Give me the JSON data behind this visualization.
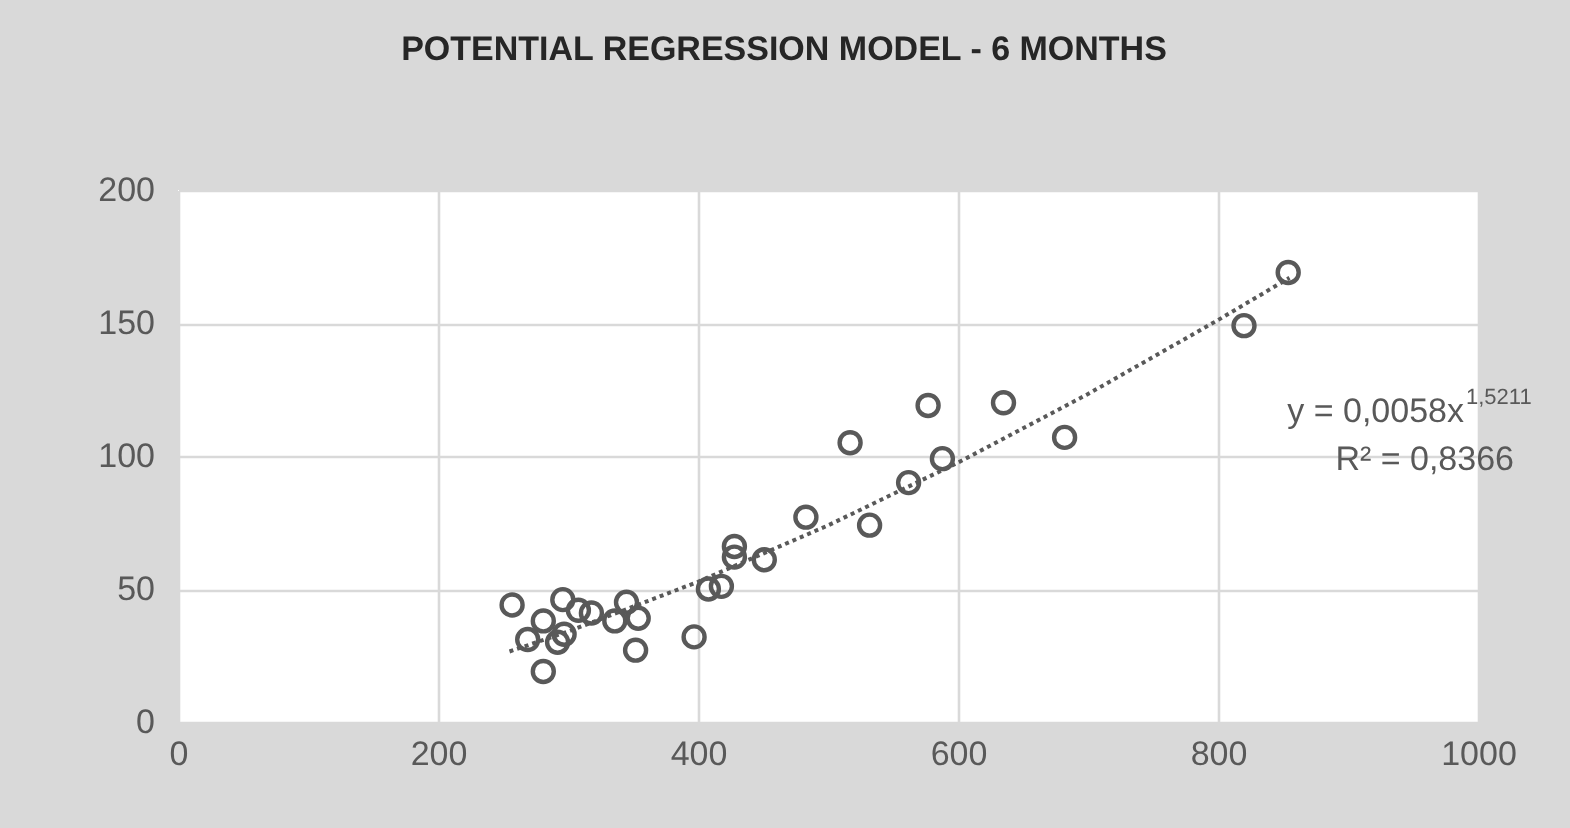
{
  "chart_data": {
    "type": "scatter",
    "title": "POTENTIAL REGRESSION MODEL - 6 MONTHS",
    "xlim": [
      0,
      1000
    ],
    "xticks": [
      0,
      200,
      400,
      600,
      800,
      {
        "value": 1000,
        "label": "1000"
      }
    ],
    "ylim": [
      0,
      200
    ],
    "yticks": [
      0,
      50,
      100,
      150,
      200
    ],
    "grid": true,
    "marker": "circle",
    "annotations": [
      "y = 0,0058x$^{1,5211}$",
      "R² = 0,8366"
    ],
    "series": [
      {
        "type": "scatter",
        "color": "#595959",
        "x": [
          257,
          281,
          269,
          281,
          296,
          297,
          292,
          308,
          318,
          336,
          345,
          354,
          352,
          397,
          408,
          418,
          428,
          428,
          451,
          483,
          517,
          532,
          562,
          577,
          588,
          635,
          682,
          820,
          854
        ],
        "values": [
          44,
          38,
          31,
          19,
          46,
          33,
          30,
          42,
          41,
          38,
          45,
          39,
          27,
          32,
          50,
          51,
          66,
          62,
          61,
          77,
          105,
          74,
          90,
          119,
          99,
          120,
          107,
          149,
          169
        ]
      },
      {
        "type": "line",
        "color": "#595959",
        "line_style": "dotted",
        "marker": "none",
        "x": [
          255,
          300,
          400,
          500,
          600,
          700,
          800,
          855
        ],
        "values": [
          26.5,
          34,
          52.7,
          73.9,
          97.5,
          123.3,
          151.1,
          167
        ]
      }
    ]
  }
}
